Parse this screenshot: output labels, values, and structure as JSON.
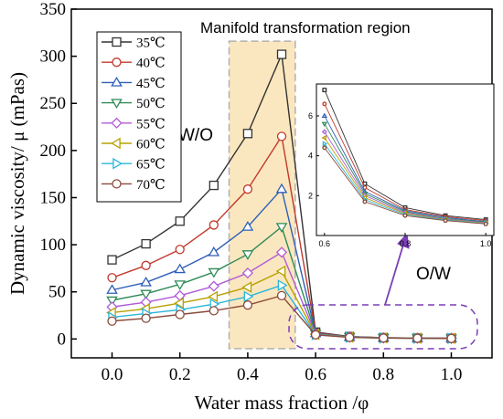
{
  "chart_data": [
    {
      "type": "line",
      "xlabel": "Water mass fraction /φ",
      "ylabel": "Dynamic viscosity/ μ (mPas)",
      "xlim": [
        -0.12,
        1.12
      ],
      "ylim": [
        -20,
        350
      ],
      "xticks": [
        0.0,
        0.2,
        0.4,
        0.6,
        0.8,
        1.0
      ],
      "xtick_labels": [
        "0.0",
        "0.2",
        "0.4",
        "0.6",
        "0.8",
        "1.0"
      ],
      "yticks": [
        0,
        50,
        100,
        150,
        200,
        250,
        300,
        350
      ],
      "ytick_labels": [
        "0",
        "50",
        "100",
        "150",
        "200",
        "250",
        "300",
        "350"
      ],
      "x": [
        0.0,
        0.1,
        0.2,
        0.3,
        0.4,
        0.5,
        0.6,
        0.7,
        0.8,
        0.9,
        1.0
      ],
      "series": [
        {
          "name": "35℃",
          "color": "#333333",
          "marker": "square",
          "values": [
            84,
            101,
            125,
            163,
            218,
            302,
            7.3,
            2.6,
            1.4,
            1.0,
            0.8
          ]
        },
        {
          "name": "40℃",
          "color": "#c0392b",
          "marker": "circle",
          "values": [
            65,
            78,
            95,
            121,
            159,
            215,
            6.6,
            2.4,
            1.3,
            0.95,
            0.75
          ]
        },
        {
          "name": "45℃",
          "color": "#2e5fb8",
          "marker": "triangle-up",
          "values": [
            52,
            60,
            74,
            92,
            119,
            159,
            6.0,
            2.2,
            1.25,
            0.9,
            0.7
          ]
        },
        {
          "name": "50℃",
          "color": "#2e8b57",
          "marker": "triangle-down",
          "values": [
            41,
            48,
            58,
            71,
            90,
            119,
            5.6,
            2.1,
            1.2,
            0.85,
            0.68
          ]
        },
        {
          "name": "55℃",
          "color": "#b05ad8",
          "marker": "diamond",
          "values": [
            34,
            39,
            46,
            56,
            70,
            92,
            5.2,
            2.0,
            1.15,
            0.82,
            0.65
          ]
        },
        {
          "name": "60℃",
          "color": "#b8a000",
          "marker": "triangle-left",
          "values": [
            28,
            32,
            38,
            45,
            55,
            72,
            4.9,
            1.9,
            1.1,
            0.8,
            0.62
          ]
        },
        {
          "name": "65℃",
          "color": "#29b6d8",
          "marker": "triangle-right",
          "values": [
            23,
            27,
            31,
            37,
            45,
            57,
            4.6,
            1.8,
            1.05,
            0.78,
            0.6
          ]
        },
        {
          "name": "70℃",
          "color": "#8b4a3a",
          "marker": "circle",
          "values": [
            19,
            22,
            26,
            30,
            36,
            46,
            4.4,
            1.7,
            1.0,
            0.75,
            0.58
          ]
        }
      ],
      "annotations": {
        "region_label": "Manifold transformation region",
        "wo_label": "W/O",
        "ow_label": "O/W",
        "region_fill_color": "#fbe7bf",
        "region_border_color": "#b0b0b0",
        "ow_box_color": "#7b3fb8",
        "arrow_color": "#7b3fb8"
      },
      "legend": "top-left",
      "grid": false
    },
    {
      "type": "line",
      "role": "inset",
      "xlim": [
        0.58,
        1.02
      ],
      "ylim": [
        0,
        7.6
      ],
      "xticks": [
        0.6,
        0.8,
        1.0
      ],
      "xtick_labels": [
        "0.6",
        "0.8",
        "1.0"
      ],
      "yticks": [
        2,
        4,
        6
      ],
      "ytick_labels": [
        "2",
        "4",
        "6"
      ],
      "x": [
        0.6,
        0.7,
        0.8,
        0.9,
        1.0
      ],
      "series_from_main": true,
      "grid": false
    }
  ]
}
